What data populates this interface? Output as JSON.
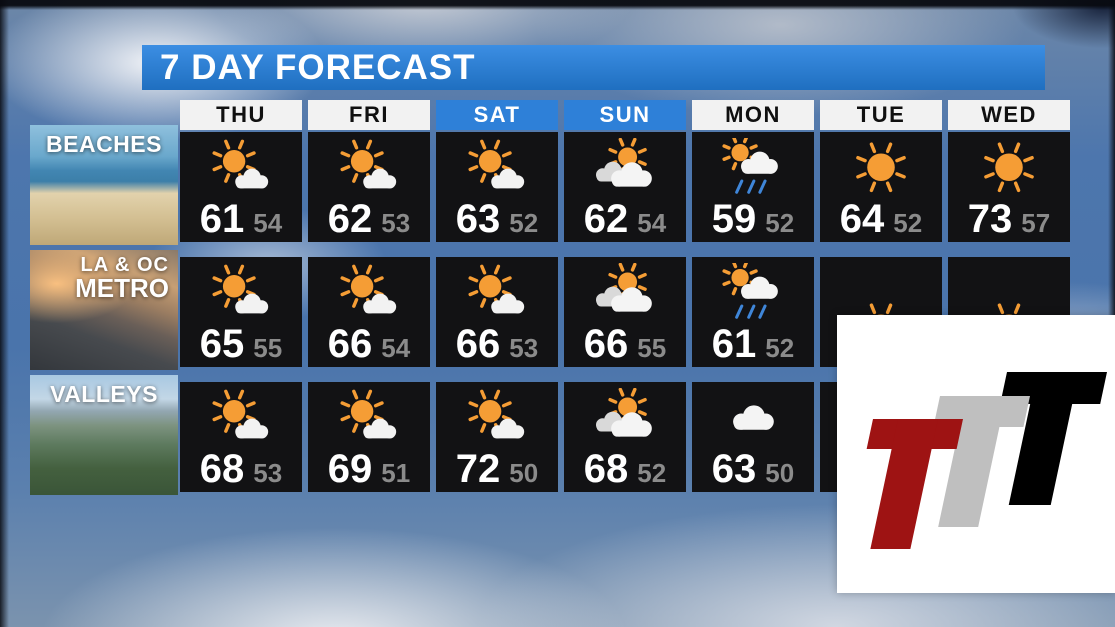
{
  "frame": {
    "title": "7 DAY FORECAST"
  },
  "days": [
    {
      "label": "THU",
      "weekend": false
    },
    {
      "label": "FRI",
      "weekend": false
    },
    {
      "label": "SAT",
      "weekend": true
    },
    {
      "label": "SUN",
      "weekend": true
    },
    {
      "label": "MON",
      "weekend": false
    },
    {
      "label": "TUE",
      "weekend": false
    },
    {
      "label": "WED",
      "weekend": false
    }
  ],
  "regions": [
    {
      "id": "beaches",
      "label_lines": [
        "BEACHES"
      ]
    },
    {
      "id": "la-oc-metro",
      "label_lines": [
        "LA & OC",
        "METRO"
      ]
    },
    {
      "id": "valleys",
      "label_lines": [
        "VALLEYS"
      ]
    }
  ],
  "colors": {
    "title_bar_blue": "#2376cf",
    "weekend_header_blue": "#2e80d8",
    "cell_background": "#121214",
    "high_temp": "#ffffff",
    "low_temp": "#8b8b8b",
    "sun": "#f59d35",
    "rain": "#3f86d9"
  },
  "logo": {
    "letters": [
      {
        "name": "t-red",
        "color": "#9e1313"
      },
      {
        "name": "t-gray",
        "color": "#bfbfbf"
      },
      {
        "name": "t-black",
        "color": "#000000"
      }
    ]
  },
  "chart_data": {
    "type": "table",
    "title": "7 DAY FORECAST",
    "columns": [
      "THU",
      "FRI",
      "SAT",
      "SUN",
      "MON",
      "TUE",
      "WED"
    ],
    "rows": [
      {
        "region": "BEACHES",
        "high": [
          61,
          62,
          63,
          62,
          59,
          64,
          73
        ],
        "low": [
          54,
          53,
          52,
          54,
          52,
          52,
          57
        ],
        "conditions": [
          "mostly-sunny",
          "mostly-sunny",
          "mostly-sunny",
          "mostly-cloudy",
          "showers",
          "sunny",
          "sunny"
        ]
      },
      {
        "region": "LA & OC METRO",
        "high": [
          65,
          66,
          66,
          66,
          61,
          null,
          null
        ],
        "low": [
          55,
          54,
          53,
          55,
          52,
          null,
          null
        ],
        "conditions": [
          "mostly-sunny",
          "mostly-sunny",
          "mostly-sunny",
          "mostly-cloudy",
          "showers",
          "sunny",
          "sunny"
        ]
      },
      {
        "region": "VALLEYS",
        "high": [
          68,
          69,
          72,
          68,
          63,
          null,
          null
        ],
        "low": [
          53,
          51,
          50,
          52,
          50,
          null,
          null
        ],
        "conditions": [
          "mostly-sunny",
          "mostly-sunny",
          "mostly-sunny",
          "mostly-cloudy",
          "cloudy",
          null,
          null
        ]
      }
    ]
  }
}
